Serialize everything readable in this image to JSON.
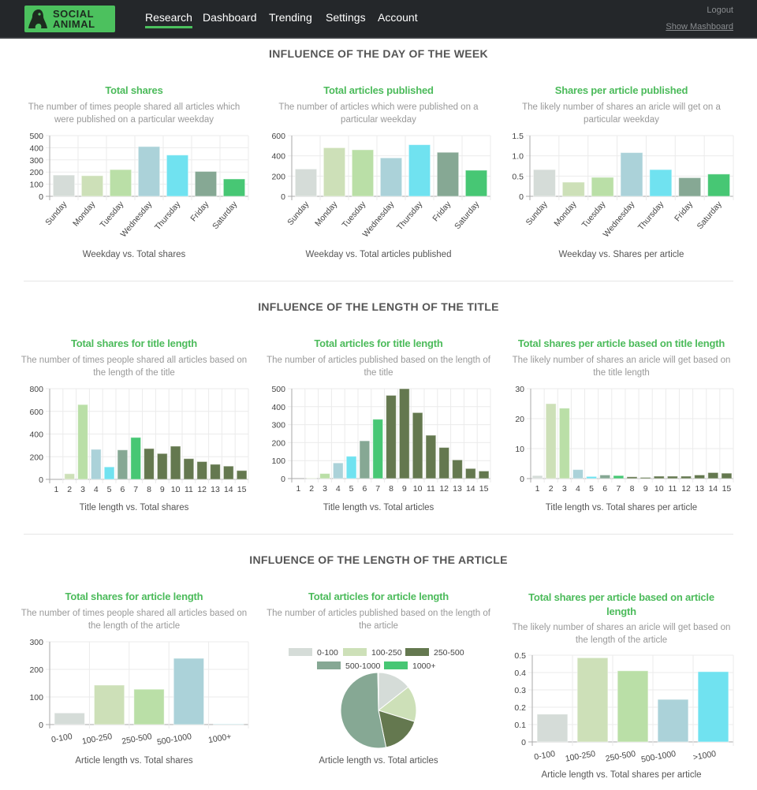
{
  "header": {
    "logo_text": [
      "SOCIAL",
      "ANIMAL"
    ],
    "nav": [
      "Research",
      "Dashboard",
      "Trending",
      "Settings",
      "Account"
    ],
    "active_nav": "Research",
    "logout": "Logout",
    "show_mashboard": "Show Mashboard",
    "accent_color": "#4cc15e"
  },
  "sections": [
    {
      "heading": "INFLUENCE OF THE DAY OF THE WEEK"
    },
    {
      "heading": "INFLUENCE OF THE LENGTH OF THE TITLE"
    },
    {
      "heading": "INFLUENCE OF THE LENGTH OF THE ARTICLE"
    }
  ],
  "chart_data": [
    {
      "type": "bar",
      "title": "Total shares",
      "subtitle": "The number of times people shared all articles which were published on a particular weekday",
      "caption": "Weekday vs. Total shares",
      "categories": [
        "Sunday",
        "Monday",
        "Tuesday",
        "Wednesday",
        "Thursday",
        "Friday",
        "Saturday"
      ],
      "values": [
        175,
        170,
        220,
        410,
        340,
        205,
        143
      ],
      "ylim": [
        0,
        500
      ],
      "yticks": [
        0,
        100,
        200,
        300,
        400,
        500
      ],
      "ytick_labels": [
        "0",
        "100",
        "200",
        "300",
        "400",
        "500"
      ],
      "colors": [
        "#d5dcd8",
        "#cde0b8",
        "#badfa7",
        "#abd2d9",
        "#70e2f0",
        "#86a894",
        "#47c774"
      ],
      "grid": true
    },
    {
      "type": "bar",
      "title": "Total articles published",
      "subtitle": "The number of articles which were published on a particular weekday",
      "caption": "Weekday vs. Total articles published",
      "categories": [
        "Sunday",
        "Monday",
        "Tuesday",
        "Wednesday",
        "Thursday",
        "Friday",
        "Saturday"
      ],
      "values": [
        270,
        480,
        460,
        380,
        510,
        435,
        258
      ],
      "ylim": [
        0,
        600
      ],
      "yticks": [
        0,
        200,
        400,
        600
      ],
      "ytick_labels": [
        "0",
        "200",
        "400",
        "600"
      ],
      "colors": [
        "#d5dcd8",
        "#cde0b8",
        "#badfa7",
        "#abd2d9",
        "#70e2f0",
        "#86a894",
        "#47c774"
      ],
      "grid": true
    },
    {
      "type": "bar",
      "title": "Shares per article published",
      "subtitle": "The likely number of shares an aricle will get on a particular weekday",
      "caption": "Weekday vs. Shares per article",
      "categories": [
        "Sunday",
        "Monday",
        "Tuesday",
        "Wednesday",
        "Thursday",
        "Friday",
        "Saturday"
      ],
      "values": [
        0.66,
        0.35,
        0.47,
        1.08,
        0.66,
        0.46,
        0.55
      ],
      "ylim": [
        0,
        1.5
      ],
      "yticks": [
        0,
        0.5,
        1,
        1.5
      ],
      "ytick_labels": [
        "0",
        "0.5",
        "1.0",
        "1.5"
      ],
      "colors": [
        "#d5dcd8",
        "#cde0b8",
        "#badfa7",
        "#abd2d9",
        "#70e2f0",
        "#86a894",
        "#47c774"
      ],
      "grid": true
    },
    {
      "type": "bar",
      "title": "Total shares for title length",
      "subtitle": "The number of times people shared all articles based on the length of the title",
      "caption": "Title length vs. Total shares",
      "categories": [
        "1",
        "2",
        "3",
        "4",
        "5",
        "6",
        "7",
        "8",
        "9",
        "10",
        "11",
        "12",
        "13",
        "14",
        "15"
      ],
      "values": [
        0,
        50,
        660,
        265,
        110,
        260,
        370,
        272,
        228,
        293,
        183,
        157,
        133,
        117,
        78
      ],
      "ylim": [
        0,
        800
      ],
      "yticks": [
        0,
        200,
        400,
        600,
        800
      ],
      "ytick_labels": [
        "0",
        "200",
        "400",
        "600",
        "800"
      ],
      "colors": [
        "#d5dcd8",
        "#cde0b8",
        "#badfa7",
        "#abd2d9",
        "#70e2f0",
        "#86a894",
        "#47c774",
        "#64784f",
        "#64784f",
        "#64784f",
        "#64784f",
        "#64784f",
        "#64784f",
        "#64784f",
        "#64784f"
      ],
      "grid": true
    },
    {
      "type": "bar",
      "title": "Total articles for title length",
      "subtitle": "The number of articles published based on the length of the title",
      "caption": "Title length vs. Total articles",
      "categories": [
        "1",
        "2",
        "3",
        "4",
        "5",
        "6",
        "7",
        "8",
        "9",
        "10",
        "11",
        "12",
        "13",
        "14",
        "15"
      ],
      "values": [
        0,
        3,
        28,
        87,
        124,
        210,
        330,
        463,
        500,
        367,
        241,
        173,
        104,
        56,
        42
      ],
      "ylim": [
        0,
        500
      ],
      "yticks": [
        0,
        100,
        200,
        300,
        400,
        500
      ],
      "ytick_labels": [
        "0",
        "100",
        "200",
        "300",
        "400",
        "500"
      ],
      "colors": [
        "#d5dcd8",
        "#cde0b8",
        "#badfa7",
        "#abd2d9",
        "#70e2f0",
        "#86a894",
        "#47c774",
        "#64784f",
        "#64784f",
        "#64784f",
        "#64784f",
        "#64784f",
        "#64784f",
        "#64784f",
        "#64784f"
      ],
      "grid": true
    },
    {
      "type": "bar",
      "title": "Total shares per article based on title length",
      "subtitle": "The likely number of shares an aricle will get based on the title length",
      "caption": "Title length vs. Total shares per article",
      "categories": [
        "1",
        "2",
        "3",
        "4",
        "5",
        "6",
        "7",
        "8",
        "9",
        "10",
        "11",
        "12",
        "13",
        "14",
        "15"
      ],
      "values": [
        1,
        25,
        23.5,
        3,
        0.7,
        1.2,
        1,
        0.6,
        0.4,
        0.8,
        0.8,
        0.8,
        1.2,
        2,
        1.8
      ],
      "ylim": [
        0,
        30
      ],
      "yticks": [
        0,
        10,
        20,
        30
      ],
      "ytick_labels": [
        "0",
        "10",
        "20",
        "30"
      ],
      "colors": [
        "#d5dcd8",
        "#cde0b8",
        "#badfa7",
        "#abd2d9",
        "#70e2f0",
        "#86a894",
        "#47c774",
        "#64784f",
        "#64784f",
        "#64784f",
        "#64784f",
        "#64784f",
        "#64784f",
        "#64784f",
        "#64784f"
      ],
      "grid": true
    },
    {
      "type": "bar",
      "title": "Total shares for article length",
      "subtitle": "The number of times people shared all articles based on the length of the article",
      "caption": "Article length vs. Total shares",
      "categories": [
        "0-100",
        "100-250",
        "250-500",
        "500-1000",
        "1000+"
      ],
      "values": [
        42,
        143,
        128,
        240,
        1
      ],
      "ylim": [
        0,
        300
      ],
      "yticks": [
        0,
        100,
        200,
        300
      ],
      "ytick_labels": [
        "0",
        "100",
        "200",
        "300"
      ],
      "colors": [
        "#d5dcd8",
        "#cde0b8",
        "#badfa7",
        "#abd2d9",
        "#70e2f0"
      ],
      "grid": true
    },
    {
      "type": "pie",
      "title": "Total articles for article length",
      "subtitle": "The number of articles published based on the length of the article",
      "caption": "Article length vs. Total articles",
      "labels": [
        "0-100",
        "100-250",
        "250-500",
        "500-1000",
        "1000+"
      ],
      "values": [
        14.4,
        15.4,
        17.0,
        52.9,
        0.3
      ],
      "colors": [
        "#d5dcd8",
        "#cde0b8",
        "#64784f",
        "#86a894",
        "#47c774"
      ],
      "legend": "top"
    },
    {
      "type": "bar",
      "title": "Total shares per article based on article length",
      "subtitle": "The likely number of shares an aricle will get based on the length of the article",
      "caption": "Article length vs. Total shares per article",
      "categories": [
        "0-100",
        "100-250",
        "250-500",
        "500-1000",
        ">1000"
      ],
      "values": [
        0.16,
        0.485,
        0.41,
        0.245,
        0.405
      ],
      "ylim": [
        0,
        0.5
      ],
      "yticks": [
        0,
        0.1,
        0.2,
        0.3,
        0.4,
        0.5
      ],
      "ytick_labels": [
        "0",
        "0.1",
        "0.2",
        "0.3",
        "0.4",
        "0.5"
      ],
      "colors": [
        "#d5dcd8",
        "#cde0b8",
        "#badfa7",
        "#abd2d9",
        "#70e2f0"
      ],
      "grid": true
    }
  ]
}
